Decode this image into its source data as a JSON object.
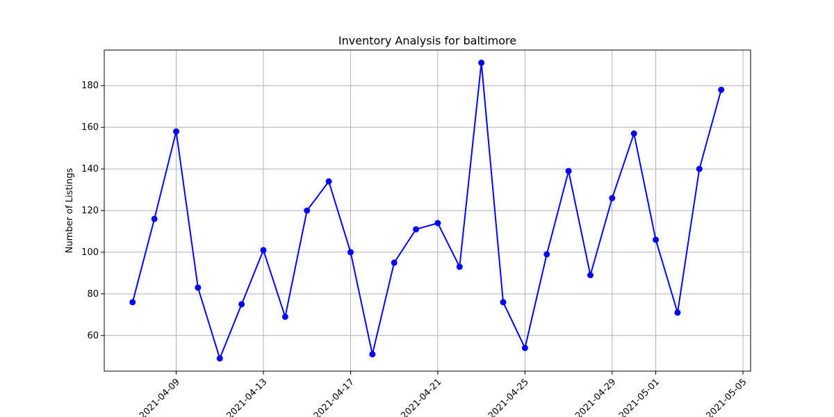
{
  "chart_data": {
    "type": "line",
    "title": "Inventory Analysis for baltimore",
    "xlabel": "",
    "ylabel": "Number of Listings",
    "x": [
      "2021-04-07",
      "2021-04-08",
      "2021-04-09",
      "2021-04-10",
      "2021-04-11",
      "2021-04-12",
      "2021-04-13",
      "2021-04-14",
      "2021-04-15",
      "2021-04-16",
      "2021-04-17",
      "2021-04-18",
      "2021-04-19",
      "2021-04-20",
      "2021-04-21",
      "2021-04-22",
      "2021-04-23",
      "2021-04-24",
      "2021-04-25",
      "2021-04-26",
      "2021-04-27",
      "2021-04-28",
      "2021-04-29",
      "2021-04-30",
      "2021-05-01",
      "2021-05-02",
      "2021-05-03",
      "2021-05-04"
    ],
    "series": [
      {
        "values": [
          76,
          116,
          158,
          83,
          49,
          75,
          101,
          69,
          120,
          134,
          100,
          51,
          95,
          111,
          114,
          93,
          191,
          76,
          54,
          99,
          139,
          89,
          126,
          157,
          106,
          71,
          140,
          178
        ],
        "color": "#0000ff",
        "marker": "circle"
      }
    ],
    "x_ticks": [
      "2021-04-09",
      "2021-04-13",
      "2021-04-17",
      "2021-04-21",
      "2021-04-25",
      "2021-04-29",
      "2021-05-01",
      "2021-05-05"
    ],
    "y_ticks": [
      60,
      80,
      100,
      120,
      140,
      160,
      180
    ],
    "xlim": [
      "2021-04-05T16:48",
      "2021-05-05T08:24"
    ],
    "ylim": [
      42.9,
      197.1
    ],
    "grid": true,
    "x_tick_rotation": 45
  }
}
